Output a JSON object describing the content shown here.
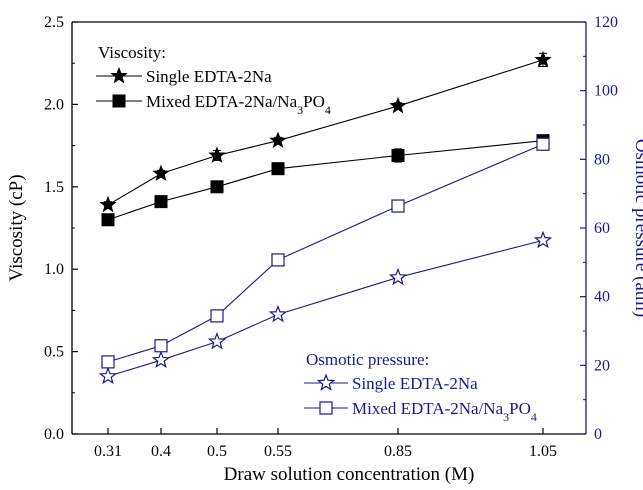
{
  "chart_data": {
    "type": "line",
    "x_categories": [
      "0.31",
      "0.4",
      "0.5",
      "0.55",
      "0.85",
      "1.05"
    ],
    "xlabel": "Draw solution concentration (M)",
    "ylabel_left": "Viscosity (cP)",
    "ylabel_right": "Osmotic pressure (atm)",
    "ylim_left": [
      0.0,
      2.5
    ],
    "ylim_right": [
      0,
      120
    ],
    "yticks_left": [
      "0.0",
      "0.5",
      "1.0",
      "1.5",
      "2.0",
      "2.5"
    ],
    "yticks_right": [
      "0",
      "20",
      "40",
      "60",
      "80",
      "100",
      "120"
    ],
    "grid": false,
    "legend_viscosity": {
      "title": "Viscosity:",
      "placement": "top-left",
      "entries": [
        "Single EDTA-2Na",
        "Mixed EDTA-2Na/Na3PO4"
      ]
    },
    "legend_osmotic": {
      "title": "Osmotic pressure:",
      "placement": "bottom-right",
      "entries": [
        "Single EDTA-2Na",
        "Mixed EDTA-2Na/Na3PO4"
      ]
    },
    "series": [
      {
        "name": "Single EDTA-2Na",
        "group": "Viscosity",
        "axis": "left",
        "marker": "star-filled",
        "color": "#000000",
        "values": [
          1.39,
          1.58,
          1.69,
          1.78,
          1.99,
          2.27
        ],
        "errors": [
          0.02,
          0.02,
          0.03,
          0.02,
          0.02,
          0.04
        ]
      },
      {
        "name": "Mixed EDTA-2Na/Na3PO4",
        "group": "Viscosity",
        "axis": "left",
        "marker": "square-filled",
        "color": "#000000",
        "values": [
          1.3,
          1.41,
          1.5,
          1.61,
          1.69,
          1.78
        ],
        "errors": [
          0.02,
          0.02,
          0.02,
          0.02,
          0.04,
          0.02
        ]
      },
      {
        "name": "Single EDTA-2Na",
        "group": "Osmotic pressure",
        "axis": "right",
        "marker": "star-open",
        "color": "#1a1a8c",
        "values": [
          16.8,
          21.5,
          26.9,
          34.8,
          45.6,
          56.4
        ],
        "errors": [
          0,
          0,
          0,
          0,
          0,
          0
        ]
      },
      {
        "name": "Mixed EDTA-2Na/Na3PO4",
        "group": "Osmotic pressure",
        "axis": "right",
        "marker": "square-open",
        "color": "#1a1a8c",
        "values": [
          21.0,
          25.7,
          34.4,
          50.7,
          66.4,
          84.4
        ],
        "errors": [
          0,
          0,
          0,
          0,
          0,
          0
        ]
      }
    ]
  }
}
